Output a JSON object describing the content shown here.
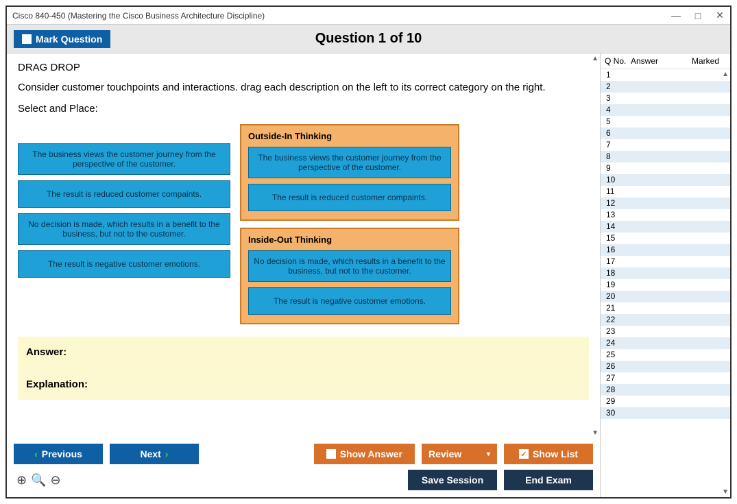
{
  "window": {
    "title": "Cisco 840-450 (Mastering the Cisco Business Architecture Discipline)"
  },
  "toolbar": {
    "mark_label": "Mark Question",
    "question_title": "Question 1 of 10"
  },
  "question": {
    "type_heading": "DRAG DROP",
    "prompt": "Consider customer touchpoints and interactions. drag each description on the left to its correct category on the right.",
    "instruction": "Select and Place:",
    "drag_items": [
      "The business views the customer journey from the perspective of the customer.",
      "The result is reduced customer compaints.",
      "No decision is made, which results in a benefit to the business, but not to the customer.",
      "The result is negative customer emotions."
    ],
    "drop_zones": [
      {
        "title": "Outside-In Thinking",
        "items": [
          "The business views the customer journey from the perspective of the customer.",
          "The result is reduced customer compaints."
        ]
      },
      {
        "title": "Inside-Out Thinking",
        "items": [
          "No decision is made, which results in a benefit to the business, but not to the customer.",
          "The result is negative customer emotions."
        ]
      }
    ]
  },
  "answer": {
    "label": "Answer:",
    "explanation_label": "Explanation:"
  },
  "side": {
    "col_qno": "Q No.",
    "col_answer": "Answer",
    "col_marked": "Marked",
    "rows": 30
  },
  "buttons": {
    "previous": "Previous",
    "next": "Next",
    "show_answer": "Show Answer",
    "review": "Review",
    "show_list": "Show List",
    "save_session": "Save Session",
    "end_exam": "End Exam"
  },
  "colors": {
    "blue": "#0f5fa4",
    "orange": "#d8702a",
    "navy": "#1e3550",
    "drag_bg": "#1fa1d8",
    "drop_bg": "#f4b26a"
  }
}
